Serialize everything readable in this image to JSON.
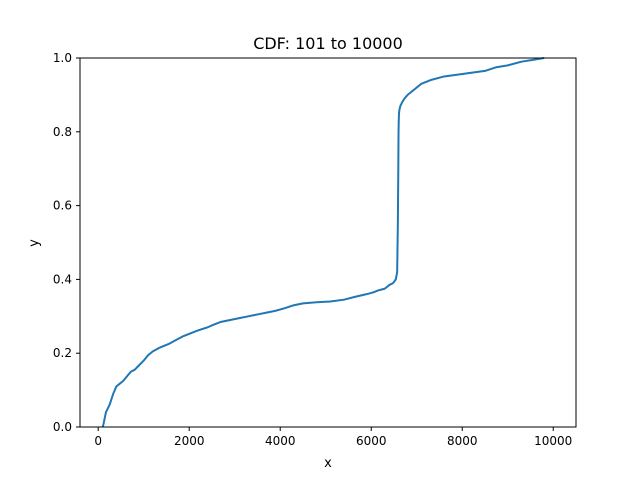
{
  "chart_data": {
    "type": "line",
    "title": "CDF: 101 to 10000",
    "xlabel": "x",
    "ylabel": "y",
    "xlim": [
      -400,
      10500
    ],
    "ylim": [
      0,
      1
    ],
    "xticks": [
      0,
      2000,
      4000,
      6000,
      8000,
      10000
    ],
    "xtick_labels": [
      "0",
      "2000",
      "4000",
      "6000",
      "8000",
      "10000"
    ],
    "yticks": [
      0.0,
      0.2,
      0.4,
      0.6,
      0.8,
      1.0
    ],
    "ytick_labels": [
      "0.0",
      "0.2",
      "0.4",
      "0.6",
      "0.8",
      "1.0"
    ],
    "grid": false,
    "series": [
      {
        "color": "#1f77b4",
        "x": [
          101,
          120,
          170,
          250,
          330,
          400,
          450,
          550,
          650,
          720,
          800,
          880,
          1000,
          1100,
          1200,
          1350,
          1550,
          1700,
          1850,
          2050,
          2200,
          2400,
          2550,
          2700,
          2900,
          3100,
          3300,
          3500,
          3700,
          3900,
          4100,
          4300,
          4500,
          4800,
          5100,
          5400,
          5650,
          5900,
          6050,
          6150,
          6300,
          6400,
          6480,
          6540,
          6570,
          6585,
          6595,
          6600,
          6605,
          6610,
          6620,
          6640,
          6680,
          6730,
          6800,
          6950,
          7100,
          7300,
          7600,
          7900,
          8200,
          8500,
          8750,
          9000,
          9300,
          9550,
          9800
        ],
        "y": [
          0.0,
          0.01,
          0.04,
          0.06,
          0.09,
          0.11,
          0.115,
          0.125,
          0.14,
          0.15,
          0.155,
          0.165,
          0.18,
          0.195,
          0.205,
          0.215,
          0.225,
          0.235,
          0.245,
          0.255,
          0.262,
          0.27,
          0.278,
          0.285,
          0.29,
          0.295,
          0.3,
          0.305,
          0.31,
          0.315,
          0.322,
          0.33,
          0.335,
          0.338,
          0.34,
          0.345,
          0.353,
          0.36,
          0.365,
          0.37,
          0.375,
          0.385,
          0.39,
          0.4,
          0.42,
          0.55,
          0.7,
          0.8,
          0.83,
          0.85,
          0.86,
          0.87,
          0.88,
          0.89,
          0.9,
          0.915,
          0.93,
          0.94,
          0.95,
          0.955,
          0.96,
          0.965,
          0.975,
          0.98,
          0.99,
          0.995,
          1.0
        ]
      }
    ]
  }
}
